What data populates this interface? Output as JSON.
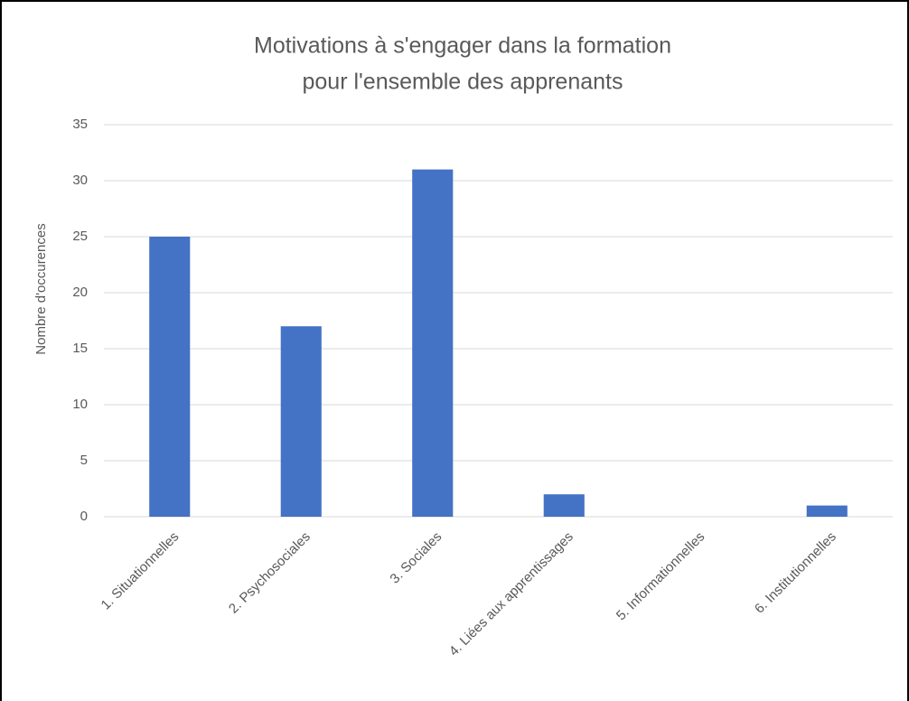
{
  "chart_data": {
    "type": "bar",
    "title": [
      "Motivations à s'engager dans la formation",
      "pour l'ensemble des apprenants"
    ],
    "y_label": "Nombre d'occurences",
    "categories": [
      "1. Situationnelles",
      "2. Psychosociales",
      "3. Sociales",
      "4. Liées aux apprentissages",
      "5. Informationnelles",
      "6. Institutionnelles"
    ],
    "values": [
      25,
      17,
      31,
      2,
      0,
      1
    ],
    "color": "#4472c4",
    "ylim": [
      0,
      35
    ],
    "yticks": [
      0,
      5,
      10,
      15,
      20,
      25,
      30,
      35
    ],
    "grid": true
  }
}
